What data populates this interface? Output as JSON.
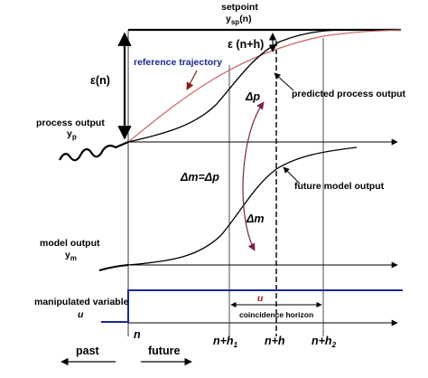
{
  "setpoint": {
    "title": "setpoint",
    "symbol": "y",
    "sub": "sp",
    "arg": "(n)"
  },
  "epsilon_n": "ε(n)",
  "epsilon_nh": "ε (n+h)",
  "reference_trajectory": "reference trajectory",
  "predicted_process_output": "predicted process output",
  "delta_p": "Δp",
  "delta_m_eq": "Δm=Δp",
  "delta_m": "Δm",
  "future_model_output": "future model output",
  "process_output": {
    "title": "process output",
    "symbol": "y",
    "sub": "p"
  },
  "model_output": {
    "title": "model output",
    "symbol": "y",
    "sub": "m"
  },
  "manipulated_variable": {
    "title": "manipulated variable",
    "symbol": "u"
  },
  "u_small": "u",
  "coincidence_horizon": "coincidence horizon",
  "n_label": "n",
  "ticks": {
    "nh1": {
      "base": "n+h",
      "sub": "1"
    },
    "nh": "n+h",
    "nh2": {
      "base": "n+h",
      "sub": "2"
    }
  },
  "past": "past",
  "future": "future",
  "colors": {
    "line": "#000000",
    "reference": "#c86464",
    "red_arrow": "#8b1a1a",
    "purple_arrow": "#7a2050",
    "input_blue": "#1a2a8c"
  }
}
